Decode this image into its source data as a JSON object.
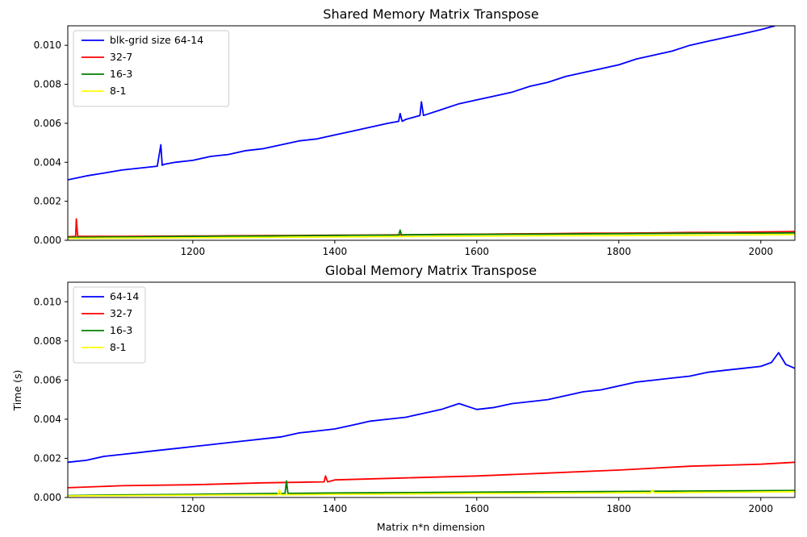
{
  "chart_data": [
    {
      "type": "line",
      "title": "Shared Memory Matrix Transpose",
      "xlabel": "",
      "ylabel": "",
      "xlim": [
        1024,
        2048
      ],
      "ylim": [
        0,
        0.011
      ],
      "x_ticks": [
        1200,
        1400,
        1600,
        1800,
        2000
      ],
      "y_ticks": [
        0.0,
        0.002,
        0.004,
        0.006,
        0.008,
        0.01
      ],
      "y_tick_labels": [
        "0.000",
        "0.002",
        "0.004",
        "0.006",
        "0.008",
        "0.010"
      ],
      "legend_position": "top-left",
      "grid": false,
      "series": [
        {
          "name": "blk-grid size 64-14",
          "color": "#0000ff",
          "x": [
            1024,
            1050,
            1075,
            1100,
            1125,
            1150,
            1155,
            1157,
            1160,
            1175,
            1200,
            1225,
            1250,
            1275,
            1300,
            1325,
            1350,
            1375,
            1400,
            1425,
            1450,
            1475,
            1490,
            1492,
            1495,
            1500,
            1520,
            1522,
            1525,
            1550,
            1575,
            1600,
            1625,
            1650,
            1675,
            1700,
            1725,
            1750,
            1775,
            1800,
            1825,
            1850,
            1875,
            1900,
            1925,
            1950,
            1975,
            2000,
            2020
          ],
          "y": [
            0.0031,
            0.0033,
            0.00345,
            0.0036,
            0.0037,
            0.0038,
            0.0049,
            0.00385,
            0.0039,
            0.004,
            0.0041,
            0.0043,
            0.0044,
            0.0046,
            0.0047,
            0.0049,
            0.0051,
            0.0052,
            0.0054,
            0.0056,
            0.0058,
            0.006,
            0.0061,
            0.0065,
            0.0061,
            0.0062,
            0.0064,
            0.0071,
            0.0064,
            0.0067,
            0.007,
            0.0072,
            0.0074,
            0.0076,
            0.0079,
            0.0081,
            0.0084,
            0.0086,
            0.0088,
            0.009,
            0.0093,
            0.0095,
            0.0097,
            0.01,
            0.0102,
            0.0104,
            0.0106,
            0.0108,
            0.011
          ]
        },
        {
          "name": "32-7",
          "color": "#ff0000",
          "x": [
            1024,
            1035,
            1036,
            1038,
            1050,
            1100,
            1150,
            1200,
            1250,
            1300,
            1350,
            1400,
            1450,
            1500,
            1550,
            1600,
            1650,
            1700,
            1750,
            1800,
            1850,
            1900,
            1950,
            2000,
            2048
          ],
          "y": [
            0.00018,
            0.0002,
            0.0011,
            0.0002,
            0.0002,
            0.0002,
            0.00021,
            0.00022,
            0.00023,
            0.00024,
            0.00025,
            0.00026,
            0.00027,
            0.00028,
            0.0003,
            0.00031,
            0.00033,
            0.00034,
            0.00036,
            0.00037,
            0.00038,
            0.0004,
            0.00041,
            0.00043,
            0.00045
          ]
        },
        {
          "name": "16-3",
          "color": "#008000",
          "x": [
            1024,
            1100,
            1200,
            1300,
            1400,
            1490,
            1492,
            1494,
            1500,
            1600,
            1700,
            1800,
            1900,
            2000,
            2048
          ],
          "y": [
            0.00015,
            0.00017,
            0.0002,
            0.00022,
            0.00025,
            0.00027,
            0.00052,
            0.00027,
            0.00028,
            0.0003,
            0.00032,
            0.00034,
            0.00036,
            0.00037,
            0.00038
          ]
        },
        {
          "name": "8-1",
          "color": "#ffff00",
          "x": [
            1024,
            1100,
            1200,
            1300,
            1400,
            1500,
            1600,
            1700,
            1800,
            1900,
            2000,
            2048
          ],
          "y": [
            0.0001,
            0.00011,
            0.00013,
            0.00015,
            0.00017,
            0.00019,
            0.00021,
            0.00023,
            0.00024,
            0.00026,
            0.00028,
            0.00029
          ]
        }
      ]
    },
    {
      "type": "line",
      "title": "Global Memory Matrix Transpose",
      "xlabel": "Matrix n*n dimension",
      "ylabel": "Time (s)",
      "xlim": [
        1024,
        2048
      ],
      "ylim": [
        0,
        0.011
      ],
      "x_ticks": [
        1200,
        1400,
        1600,
        1800,
        2000
      ],
      "y_ticks": [
        0.0,
        0.002,
        0.004,
        0.006,
        0.008,
        0.01
      ],
      "y_tick_labels": [
        "0.000",
        "0.002",
        "0.004",
        "0.006",
        "0.008",
        "0.010"
      ],
      "legend_position": "top-left",
      "grid": false,
      "series": [
        {
          "name": "64-14",
          "color": "#0000ff",
          "x": [
            1024,
            1050,
            1075,
            1100,
            1125,
            1150,
            1175,
            1200,
            1225,
            1250,
            1275,
            1300,
            1325,
            1350,
            1375,
            1400,
            1425,
            1450,
            1475,
            1500,
            1525,
            1550,
            1575,
            1600,
            1625,
            1650,
            1675,
            1700,
            1725,
            1750,
            1775,
            1800,
            1825,
            1850,
            1875,
            1900,
            1925,
            1950,
            1975,
            2000,
            2015,
            2025,
            2035,
            2048
          ],
          "y": [
            0.0018,
            0.0019,
            0.0021,
            0.0022,
            0.0023,
            0.0024,
            0.0025,
            0.0026,
            0.0027,
            0.0028,
            0.0029,
            0.003,
            0.0031,
            0.0033,
            0.0034,
            0.0035,
            0.0037,
            0.0039,
            0.004,
            0.0041,
            0.0043,
            0.0045,
            0.0048,
            0.0045,
            0.0046,
            0.0048,
            0.0049,
            0.005,
            0.0052,
            0.0054,
            0.0055,
            0.0057,
            0.0059,
            0.006,
            0.0061,
            0.0062,
            0.0064,
            0.0065,
            0.0066,
            0.0067,
            0.0069,
            0.0074,
            0.0068,
            0.0066
          ]
        },
        {
          "name": "32-7",
          "color": "#ff0000",
          "x": [
            1024,
            1100,
            1200,
            1300,
            1385,
            1387,
            1390,
            1400,
            1500,
            1600,
            1700,
            1800,
            1900,
            2000,
            2048
          ],
          "y": [
            0.0005,
            0.0006,
            0.00065,
            0.00075,
            0.0008,
            0.0011,
            0.0008,
            0.0009,
            0.001,
            0.0011,
            0.00125,
            0.0014,
            0.0016,
            0.0017,
            0.0018
          ]
        },
        {
          "name": "16-3",
          "color": "#008000",
          "x": [
            1024,
            1100,
            1200,
            1300,
            1330,
            1332,
            1334,
            1400,
            1500,
            1600,
            1700,
            1800,
            1900,
            2000,
            2048
          ],
          "y": [
            0.0001,
            0.00013,
            0.00016,
            0.0002,
            0.00021,
            0.00085,
            0.00021,
            0.00023,
            0.00025,
            0.00027,
            0.00029,
            0.00031,
            0.00033,
            0.00035,
            0.00036
          ]
        },
        {
          "name": "8-1",
          "color": "#ffff00",
          "x": [
            1024,
            1100,
            1200,
            1300,
            1320,
            1322,
            1324,
            1400,
            1500,
            1600,
            1700,
            1800,
            1845,
            1847,
            1850,
            1900,
            2000,
            2048
          ],
          "y": [
            8e-05,
            0.0001,
            0.00012,
            0.00014,
            0.00014,
            0.0004,
            0.00014,
            0.00016,
            0.00018,
            0.0002,
            0.00022,
            0.00024,
            0.00024,
            0.00038,
            0.00024,
            0.00026,
            0.00028,
            0.0003
          ]
        }
      ]
    }
  ]
}
